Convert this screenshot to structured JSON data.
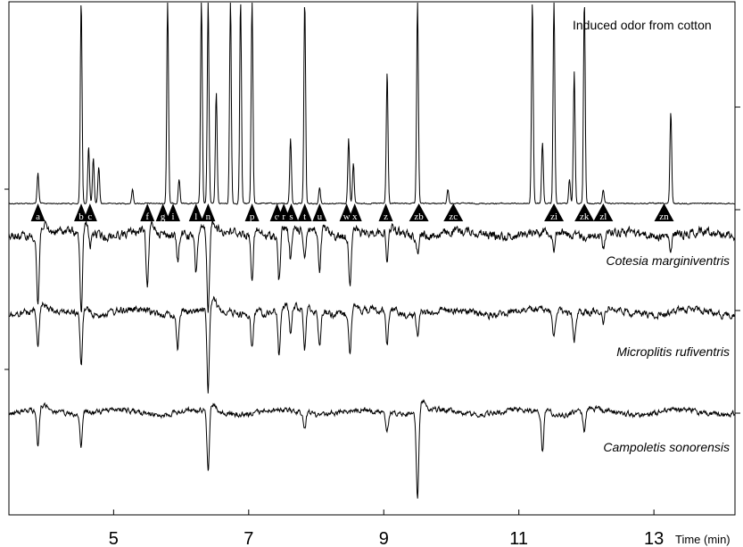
{
  "chart_data": {
    "type": "line",
    "title": "",
    "xlabel": "Time (min)",
    "ylabel": "",
    "xlim": [
      3.45,
      14.2
    ],
    "xticks": [
      5,
      7,
      9,
      11,
      13
    ],
    "xtick_labels": [
      "5",
      "7",
      "9",
      "11",
      "13"
    ],
    "grid": false,
    "traces": [
      {
        "name": "Induced odor from cotton",
        "kind": "chromatogram",
        "peaks": [
          {
            "t": 3.88,
            "h": 0.15
          },
          {
            "t": 4.52,
            "h": 1.0
          },
          {
            "t": 4.63,
            "h": 0.28
          },
          {
            "t": 4.7,
            "h": 0.22
          },
          {
            "t": 4.78,
            "h": 0.18
          },
          {
            "t": 5.28,
            "h": 0.07
          },
          {
            "t": 5.8,
            "h": 1.0
          },
          {
            "t": 5.97,
            "h": 0.12
          },
          {
            "t": 6.3,
            "h": 1.0
          },
          {
            "t": 6.4,
            "h": 1.0
          },
          {
            "t": 6.52,
            "h": 0.55
          },
          {
            "t": 6.73,
            "h": 1.0
          },
          {
            "t": 6.88,
            "h": 1.0
          },
          {
            "t": 7.05,
            "h": 1.0
          },
          {
            "t": 7.62,
            "h": 0.32
          },
          {
            "t": 7.83,
            "h": 1.0
          },
          {
            "t": 8.05,
            "h": 0.08
          },
          {
            "t": 8.48,
            "h": 0.32
          },
          {
            "t": 8.55,
            "h": 0.2
          },
          {
            "t": 9.05,
            "h": 0.65
          },
          {
            "t": 9.5,
            "h": 1.0
          },
          {
            "t": 9.95,
            "h": 0.07
          },
          {
            "t": 11.2,
            "h": 1.0
          },
          {
            "t": 11.35,
            "h": 0.3
          },
          {
            "t": 11.52,
            "h": 1.0
          },
          {
            "t": 11.75,
            "h": 0.12
          },
          {
            "t": 11.82,
            "h": 0.65
          },
          {
            "t": 11.97,
            "h": 1.0
          },
          {
            "t": 12.25,
            "h": 0.07
          },
          {
            "t": 13.25,
            "h": 0.45
          }
        ]
      },
      {
        "name": "Cotesia marginiventris",
        "kind": "EAD",
        "responses": [
          {
            "t": 3.88,
            "d": 0.85
          },
          {
            "t": 4.52,
            "d": 1.0
          },
          {
            "t": 4.65,
            "d": 0.2
          },
          {
            "t": 5.5,
            "d": 0.7
          },
          {
            "t": 5.95,
            "d": 0.3
          },
          {
            "t": 6.22,
            "d": 0.45
          },
          {
            "t": 6.4,
            "d": 1.0
          },
          {
            "t": 7.05,
            "d": 0.5
          },
          {
            "t": 7.45,
            "d": 0.55
          },
          {
            "t": 7.62,
            "d": 0.35
          },
          {
            "t": 7.83,
            "d": 0.3
          },
          {
            "t": 8.05,
            "d": 0.5
          },
          {
            "t": 8.5,
            "d": 0.55
          },
          {
            "t": 9.05,
            "d": 0.35
          },
          {
            "t": 9.5,
            "d": 0.2
          },
          {
            "t": 11.52,
            "d": 0.2
          },
          {
            "t": 12.25,
            "d": 0.2
          },
          {
            "t": 13.25,
            "d": 0.2
          }
        ]
      },
      {
        "name": "Microplitis rufiventris",
        "kind": "EAD",
        "responses": [
          {
            "t": 3.88,
            "d": 0.45
          },
          {
            "t": 4.52,
            "d": 0.6
          },
          {
            "t": 5.95,
            "d": 0.4
          },
          {
            "t": 6.4,
            "d": 1.0
          },
          {
            "t": 7.05,
            "d": 0.4
          },
          {
            "t": 7.45,
            "d": 0.55
          },
          {
            "t": 7.62,
            "d": 0.3
          },
          {
            "t": 7.83,
            "d": 0.45
          },
          {
            "t": 8.05,
            "d": 0.4
          },
          {
            "t": 8.5,
            "d": 0.45
          },
          {
            "t": 9.05,
            "d": 0.4
          },
          {
            "t": 9.5,
            "d": 0.25
          },
          {
            "t": 11.52,
            "d": 0.3
          },
          {
            "t": 11.82,
            "d": 0.3
          },
          {
            "t": 12.25,
            "d": 0.2
          }
        ]
      },
      {
        "name": "Campoletis sonorensis",
        "kind": "EAD",
        "responses": [
          {
            "t": 3.88,
            "d": 0.45
          },
          {
            "t": 4.52,
            "d": 0.35
          },
          {
            "t": 6.4,
            "d": 0.7
          },
          {
            "t": 7.83,
            "d": 0.15
          },
          {
            "t": 9.05,
            "d": 0.2
          },
          {
            "t": 9.5,
            "d": 1.0
          },
          {
            "t": 11.35,
            "d": 0.45
          },
          {
            "t": 11.97,
            "d": 0.25
          }
        ]
      }
    ],
    "markers": [
      {
        "label": "a",
        "t": 3.88
      },
      {
        "label": "b",
        "t": 4.52
      },
      {
        "label": "c",
        "t": 4.65
      },
      {
        "label": "f",
        "t": 5.5
      },
      {
        "label": "g",
        "t": 5.73
      },
      {
        "label": "i",
        "t": 5.88
      },
      {
        "label": "l",
        "t": 6.22
      },
      {
        "label": "n",
        "t": 6.4
      },
      {
        "label": "p",
        "t": 7.05
      },
      {
        "label": "q",
        "t": 7.42
      },
      {
        "label": "r",
        "t": 7.52
      },
      {
        "label": "s",
        "t": 7.63
      },
      {
        "label": "t",
        "t": 7.83
      },
      {
        "label": "u",
        "t": 8.05
      },
      {
        "label": "w",
        "t": 8.45
      },
      {
        "label": "x",
        "t": 8.57
      },
      {
        "label": "z",
        "t": 9.03
      },
      {
        "label": "zb",
        "t": 9.52
      },
      {
        "label": "zc",
        "t": 10.03
      },
      {
        "label": "zi",
        "t": 11.52
      },
      {
        "label": "zk",
        "t": 11.97
      },
      {
        "label": "zl",
        "t": 12.25
      },
      {
        "label": "zn",
        "t": 13.15
      }
    ]
  }
}
